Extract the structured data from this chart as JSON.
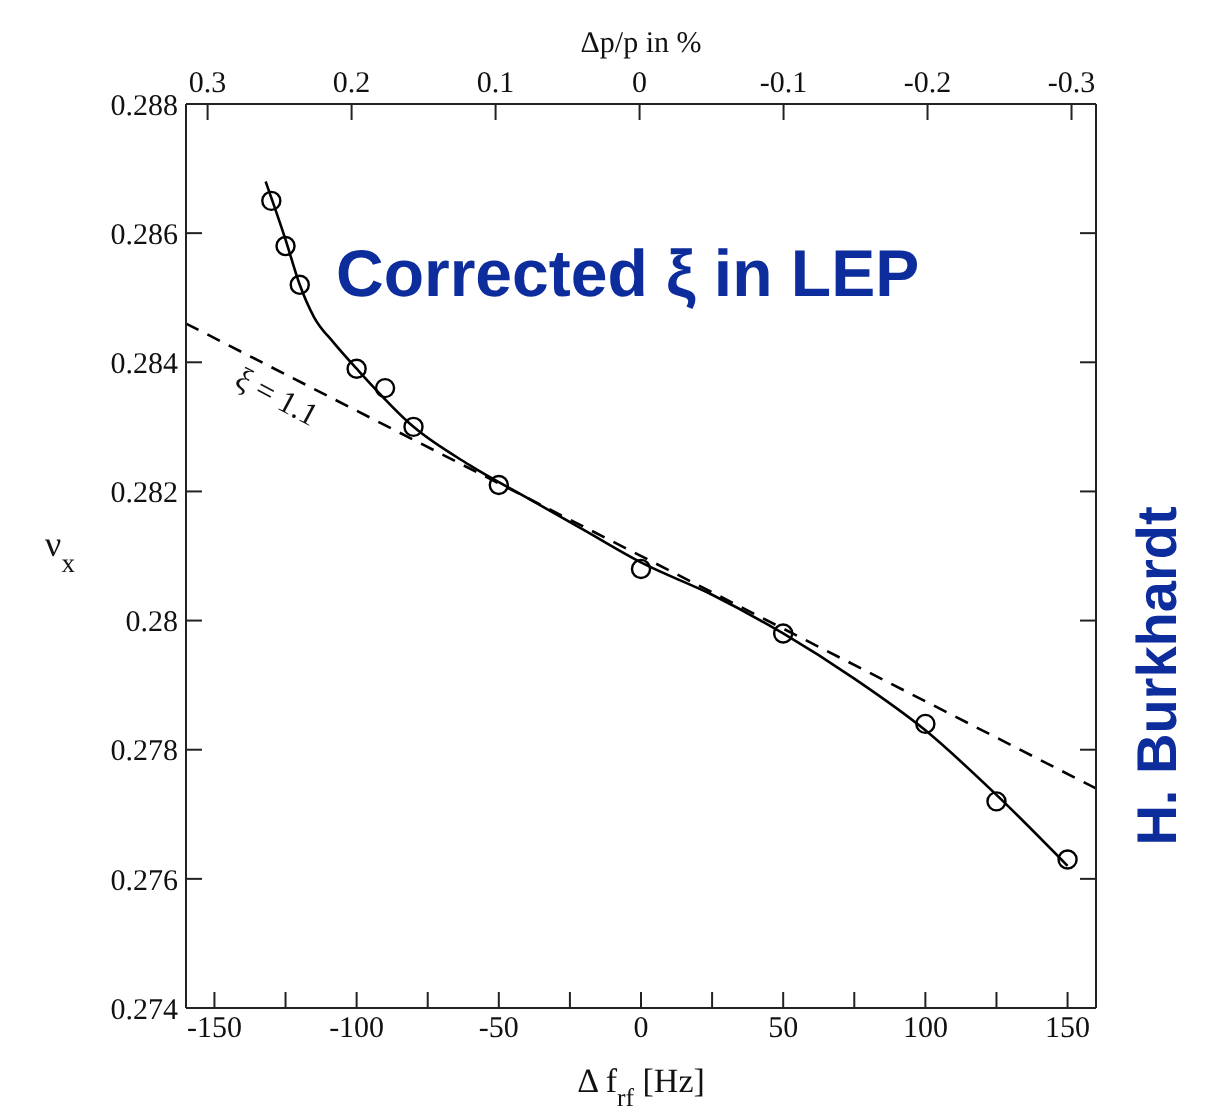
{
  "chart_data": {
    "type": "scatter",
    "title": "Corrected ξ in LEP",
    "xlabel": "Δ f$_{rf}$   [Hz]",
    "ylabel": "ν$_{x}$",
    "x2label": "Δp/p in %",
    "xlim": [
      -160,
      160
    ],
    "xticks": [
      -150,
      {
        "value": -125,
        "label": null
      },
      -100,
      {
        "value": -75,
        "label": null
      },
      -50,
      {
        "value": -25,
        "label": null
      },
      0,
      {
        "value": 25,
        "label": null
      },
      50,
      {
        "value": 75,
        "label": null
      },
      100,
      {
        "value": 125,
        "label": null
      },
      150
    ],
    "x2lim": [
      0.315,
      -0.317
    ],
    "x2ticks": [
      0.3,
      0.2,
      0.1,
      0,
      -0.1,
      -0.2,
      -0.3
    ],
    "ylim": [
      0.274,
      0.288
    ],
    "yticks": [
      0.274,
      0.276,
      0.278,
      0.28,
      0.282,
      0.284,
      0.286,
      0.288
    ],
    "series": [
      {
        "type": "scatter",
        "marker": "circle",
        "color": "#000000",
        "x": [
          -130,
          -125,
          -120,
          -100,
          -90,
          -80,
          -50,
          0,
          50,
          100,
          125,
          150
        ],
        "values": [
          0.2865,
          0.2858,
          0.2852,
          0.2839,
          0.2836,
          0.283,
          0.2821,
          0.2808,
          0.2798,
          0.2784,
          0.2772,
          0.2763
        ]
      },
      {
        "type": "line",
        "marker": "none",
        "line_style": "solid",
        "color": "#000000",
        "x": [
          -132,
          -125,
          -120,
          -115,
          -108,
          -100,
          -80,
          -60,
          -40,
          -20,
          0,
          25,
          50,
          75,
          100,
          125,
          150
        ],
        "values": [
          0.2868,
          0.2859,
          0.2852,
          0.2847,
          0.2843,
          0.2839,
          0.283,
          0.2824,
          0.2819,
          0.2814,
          0.2809,
          0.2804,
          0.2798,
          0.2791,
          0.2783,
          0.2773,
          0.2762
        ]
      },
      {
        "type": "line",
        "marker": "none",
        "line_style": "dashed",
        "color": "#000000",
        "x": [
          -160,
          160
        ],
        "values": [
          0.2846,
          0.2774
        ]
      }
    ],
    "annotations": [
      "ξ = 1.1",
      "H. Burkhardt"
    ]
  }
}
